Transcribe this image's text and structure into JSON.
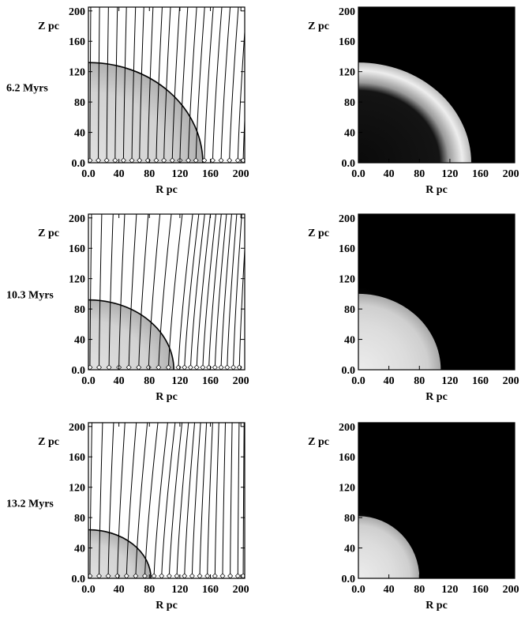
{
  "chart_data": [
    {
      "type": "contour",
      "panel": "field-lines",
      "time_label": "6.2 Myrs",
      "xlabel": "R pc",
      "ylabel": "Z pc",
      "xlim": [
        0,
        205
      ],
      "ylim": [
        0,
        205
      ],
      "xticks": [
        "0.0",
        "40",
        "80",
        "120",
        "160",
        "200"
      ],
      "yticks": [
        "0.0",
        "40",
        "80",
        "120",
        "160",
        "200"
      ],
      "shell": {
        "r_edge": 150,
        "z_top": 132,
        "inner_radius": 115
      },
      "field_line_footpoints": [
        2,
        13,
        24,
        35,
        46,
        57,
        67,
        78,
        89,
        99,
        110,
        120,
        131,
        141,
        152,
        163,
        174,
        185,
        196,
        203
      ],
      "field_line_bend": 14
    },
    {
      "type": "heatmap",
      "panel": "density",
      "xlabel": "R pc",
      "ylabel": "Z pc",
      "xlim": [
        0,
        205
      ],
      "ylim": [
        0,
        205
      ],
      "xticks": [
        "0.0",
        "40",
        "80",
        "120",
        "160",
        "200"
      ],
      "yticks": [
        "0.0",
        "40",
        "80",
        "120",
        "160",
        "200"
      ],
      "shell": {
        "r_edge": 148,
        "z_top": 132,
        "inner_radius": 110
      },
      "style": "hollow-shell"
    },
    {
      "type": "contour",
      "panel": "field-lines",
      "time_label": "10.3 Myrs",
      "xlabel": "R pc",
      "ylabel": "Z pc",
      "xlim": [
        0,
        205
      ],
      "ylim": [
        0,
        205
      ],
      "xticks": [
        "0.0",
        "40",
        "80",
        "120",
        "160",
        "200"
      ],
      "yticks": [
        "0.0",
        "40",
        "80",
        "120",
        "160",
        "200"
      ],
      "shell": {
        "r_edge": 112,
        "z_top": 92,
        "inner_radius": 80
      },
      "field_line_footpoints": [
        2,
        14,
        27,
        40,
        53,
        66,
        79,
        92,
        105,
        118,
        126,
        134,
        142,
        150,
        158,
        166,
        174,
        182,
        190,
        198
      ],
      "field_line_bend": 28
    },
    {
      "type": "heatmap",
      "panel": "density",
      "xlabel": "R pc",
      "ylabel": "Z pc",
      "xlim": [
        0,
        205
      ],
      "ylim": [
        0,
        205
      ],
      "xticks": [
        "0.0",
        "40",
        "80",
        "120",
        "160",
        "200"
      ],
      "yticks": [
        "0.0",
        "40",
        "80",
        "120",
        "160",
        "200"
      ],
      "shell": {
        "r_edge": 108,
        "z_top": 100,
        "inner_radius": 0
      },
      "style": "filled-bubble"
    },
    {
      "type": "contour",
      "panel": "field-lines",
      "time_label": "13.2 Myrs",
      "xlabel": "R pc",
      "ylabel": "Z pc",
      "xlim": [
        0,
        205
      ],
      "ylim": [
        0,
        205
      ],
      "xticks": [
        "0.0",
        "40",
        "80",
        "120",
        "160",
        "200"
      ],
      "yticks": [
        "0.0",
        "40",
        "80",
        "120",
        "160",
        "200"
      ],
      "shell": {
        "r_edge": 82,
        "z_top": 64,
        "inner_radius": 55
      },
      "field_line_footpoints": [
        2,
        14,
        26,
        38,
        50,
        62,
        74,
        86,
        96,
        106,
        116,
        126,
        136,
        146,
        156,
        166,
        176,
        186,
        196,
        203
      ],
      "field_line_bend": 34
    },
    {
      "type": "heatmap",
      "panel": "density",
      "xlabel": "R pc",
      "ylabel": "Z pc",
      "xlim": [
        0,
        205
      ],
      "ylim": [
        0,
        205
      ],
      "xticks": [
        "0.0",
        "40",
        "80",
        "120",
        "160",
        "200"
      ],
      "yticks": [
        "0.0",
        "40",
        "80",
        "120",
        "160",
        "200"
      ],
      "shell": {
        "r_edge": 80,
        "z_top": 82,
        "inner_radius": 0
      },
      "style": "filled-bubble"
    }
  ]
}
